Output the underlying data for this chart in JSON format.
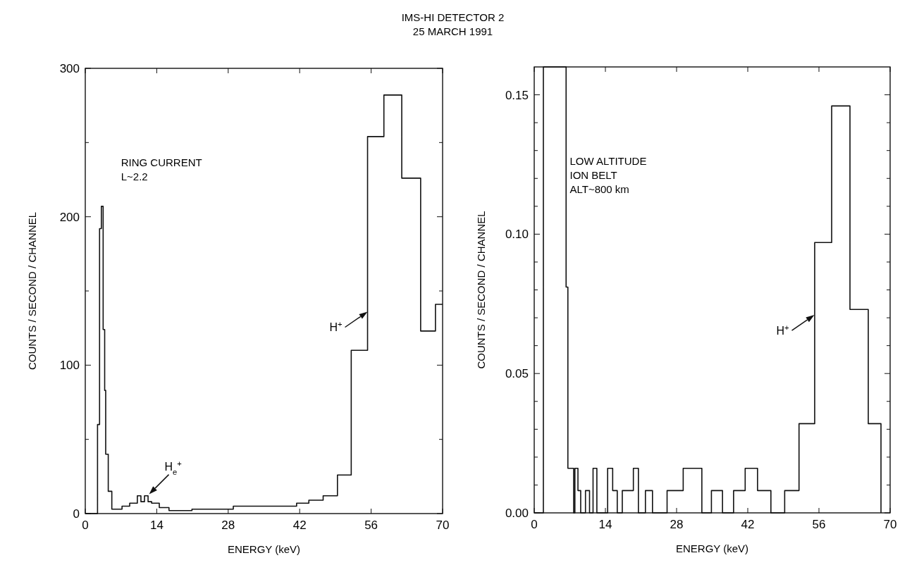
{
  "chart_data": [
    {
      "type": "step",
      "title": "IMS-HI DETECTOR 2",
      "subtitle": "25 MARCH 1991",
      "xlabel": "ENERGY (keV)",
      "ylabel": "COUNTS / SECOND / CHANNEL",
      "color": "#111111",
      "x": [
        0,
        2.4,
        2.8,
        3.15,
        3.5,
        3.8,
        4.0,
        4.5,
        5.2,
        7.2,
        8.7,
        10.2,
        10.9,
        11.6,
        12.3,
        13.0,
        14.5,
        16.4,
        20.9,
        29.0,
        41.4,
        43.8,
        46.6,
        49.4,
        52.1,
        55.3,
        58.5,
        62.0,
        65.7,
        68.6,
        70
      ],
      "values": [
        0,
        60,
        192,
        207,
        124,
        83,
        40,
        15,
        3,
        5,
        7,
        12,
        8,
        12,
        8,
        7,
        4,
        2,
        3,
        5,
        7,
        9,
        12,
        26,
        110,
        254,
        282,
        226,
        123,
        141,
        141
      ],
      "xlim": [
        0,
        70
      ],
      "xticks": [
        0,
        14,
        28,
        42,
        56,
        70
      ],
      "ylim": [
        0,
        300
      ],
      "yticks": [
        0,
        {
          "value": 50,
          "label": null
        },
        100,
        {
          "value": 150,
          "label": null
        },
        200,
        {
          "value": 250,
          "label": null
        },
        300
      ],
      "annotations": [
        "RING CURRENT",
        "L~2.2",
        {
          "text": "H$^{+}$",
          "x": 55.3,
          "y": 136
        },
        {
          "text": "H$_{e}$$^{+}$",
          "x": 12.5,
          "y": 13
        }
      ]
    },
    {
      "type": "step",
      "xlabel": "ENERGY (keV)",
      "ylabel": "COUNTS / SECOND / CHANNEL",
      "color": "#111111",
      "x": [
        0,
        1.8,
        6.27,
        6.62,
        7.76,
        8.0,
        8.6,
        9.14,
        10.08,
        10.88,
        11.57,
        12.32,
        14.44,
        15.43,
        16.33,
        17.32,
        19.5,
        20.49,
        21.87,
        23.26,
        26.13,
        29.3,
        32.97,
        34.85,
        37.03,
        39.21,
        41.49,
        43.92,
        46.55,
        49.26,
        52.08,
        55.16,
        58.5,
        62.1,
        65.7,
        68.2
      ],
      "values": [
        0,
        0.16,
        0.081,
        0.016,
        0,
        0.016,
        0.008,
        0,
        0.008,
        0,
        0.016,
        0,
        0.016,
        0.008,
        0,
        0.008,
        0.016,
        0,
        0.008,
        0,
        0.008,
        0.016,
        0,
        0.008,
        0,
        0.008,
        0.016,
        0.008,
        0,
        0.008,
        0.032,
        0.097,
        0.146,
        0.073,
        0.032,
        0
      ],
      "xlim": [
        0,
        70
      ],
      "xticks": [
        0,
        14,
        28,
        42,
        56,
        70
      ],
      "ylim": [
        0,
        0.16
      ],
      "yticks": [
        {
          "value": 0,
          "label": "0.00"
        },
        {
          "value": 0.01,
          "label": null
        },
        {
          "value": 0.02,
          "label": null
        },
        {
          "value": 0.03,
          "label": null
        },
        {
          "value": 0.04,
          "label": null
        },
        {
          "value": 0.05,
          "label": "0.05"
        },
        {
          "value": 0.06,
          "label": null
        },
        {
          "value": 0.07,
          "label": null
        },
        {
          "value": 0.08,
          "label": null
        },
        {
          "value": 0.09,
          "label": null
        },
        {
          "value": 0.1,
          "label": "0.10"
        },
        {
          "value": 0.11,
          "label": null
        },
        {
          "value": 0.12,
          "label": null
        },
        {
          "value": 0.13,
          "label": null
        },
        {
          "value": 0.14,
          "label": null
        },
        {
          "value": 0.15,
          "label": "0.15"
        }
      ],
      "annotations": [
        "LOW ALTITUDE",
        "ION BELT",
        "ALT~800 km",
        {
          "text": "H$^{+}$",
          "x": 55.1,
          "y": 0.071
        }
      ]
    }
  ]
}
